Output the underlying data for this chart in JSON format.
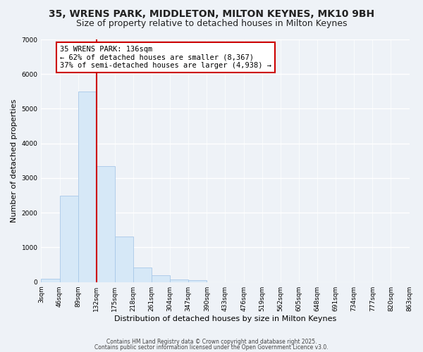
{
  "title": "35, WRENS PARK, MIDDLETON, MILTON KEYNES, MK10 9BH",
  "subtitle": "Size of property relative to detached houses in Milton Keynes",
  "xlabel": "Distribution of detached houses by size in Milton Keynes",
  "ylabel": "Number of detached properties",
  "bar_values": [
    90,
    2500,
    5500,
    3350,
    1320,
    420,
    200,
    80,
    50,
    0,
    0,
    0,
    0,
    0,
    0,
    0,
    0,
    0,
    0,
    0
  ],
  "bin_edges": [
    3,
    46,
    89,
    132,
    175,
    218,
    261,
    304,
    347,
    390,
    433,
    476,
    519,
    562,
    605,
    648,
    691,
    734,
    777,
    820,
    863
  ],
  "bar_color": "#d6e8f7",
  "bar_edge_color": "#a8c8e8",
  "vline_x": 132,
  "vline_color": "#cc0000",
  "annotation_line1": "35 WRENS PARK: 136sqm",
  "annotation_line2": "← 62% of detached houses are smaller (8,367)",
  "annotation_line3": "37% of semi-detached houses are larger (4,938) →",
  "annotation_box_color": "#ffffff",
  "annotation_box_edge": "#cc0000",
  "ylim": [
    0,
    7000
  ],
  "yticks": [
    0,
    1000,
    2000,
    3000,
    4000,
    5000,
    6000,
    7000
  ],
  "footer1": "Contains HM Land Registry data © Crown copyright and database right 2025.",
  "footer2": "Contains public sector information licensed under the Open Government Licence v3.0.",
  "background_color": "#eef2f7",
  "grid_color": "#ffffff",
  "title_fontsize": 10,
  "subtitle_fontsize": 9,
  "tick_fontsize": 6.5,
  "ylabel_fontsize": 8,
  "xlabel_fontsize": 8,
  "annotation_fontsize": 7.5,
  "footer_fontsize": 5.5
}
